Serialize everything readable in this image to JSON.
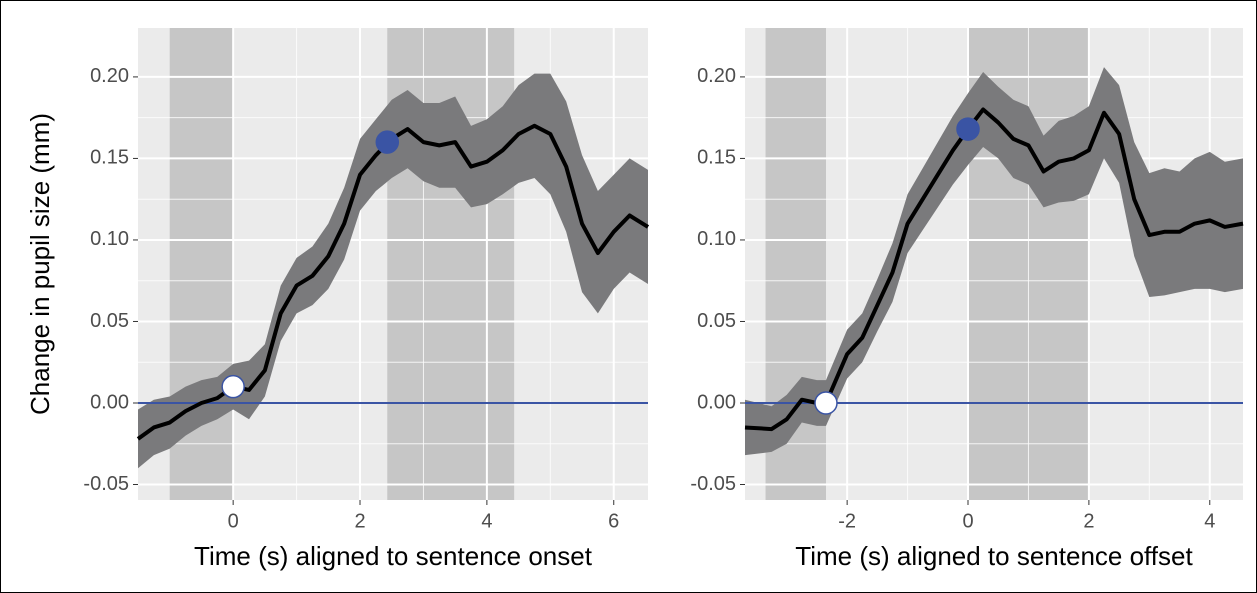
{
  "chart_data": [
    {
      "type": "line",
      "xlabel": "Time (s) aligned to sentence onset",
      "ylabel": "Change in pupil size (mm)",
      "x": [
        -1.5,
        -1.25,
        -1.0,
        -0.75,
        -0.5,
        -0.25,
        0,
        0.25,
        0.5,
        0.75,
        1.0,
        1.25,
        1.5,
        1.75,
        2.0,
        2.25,
        2.5,
        2.75,
        3.0,
        3.25,
        3.5,
        3.75,
        4.0,
        4.25,
        4.5,
        4.75,
        5.0,
        5.25,
        5.5,
        5.75,
        6.0,
        6.25,
        6.54
      ],
      "values": [
        -0.022,
        -0.015,
        -0.012,
        -0.005,
        0.0,
        0.003,
        0.01,
        0.008,
        0.02,
        0.055,
        0.072,
        0.078,
        0.09,
        0.11,
        0.14,
        0.152,
        0.162,
        0.168,
        0.16,
        0.158,
        0.16,
        0.145,
        0.148,
        0.155,
        0.165,
        0.17,
        0.165,
        0.145,
        0.11,
        0.092,
        0.105,
        0.115,
        0.108
      ],
      "ci_lower": [
        -0.04,
        -0.032,
        -0.028,
        -0.02,
        -0.014,
        -0.01,
        -0.004,
        -0.01,
        0.004,
        0.038,
        0.055,
        0.06,
        0.07,
        0.088,
        0.118,
        0.13,
        0.138,
        0.144,
        0.136,
        0.132,
        0.132,
        0.12,
        0.122,
        0.128,
        0.135,
        0.138,
        0.128,
        0.105,
        0.068,
        0.055,
        0.07,
        0.08,
        0.073
      ],
      "ci_upper": [
        -0.004,
        0.002,
        0.004,
        0.01,
        0.014,
        0.016,
        0.024,
        0.026,
        0.036,
        0.072,
        0.089,
        0.096,
        0.11,
        0.132,
        0.162,
        0.174,
        0.186,
        0.192,
        0.184,
        0.184,
        0.188,
        0.17,
        0.174,
        0.182,
        0.195,
        0.202,
        0.202,
        0.185,
        0.152,
        0.13,
        0.14,
        0.15,
        0.143
      ],
      "shaded": [
        [
          -1.0,
          0.0
        ],
        [
          2.43,
          4.43
        ]
      ],
      "markers": [
        {
          "x": 0.0,
          "y": 0.01,
          "color": "#ffffff"
        },
        {
          "x": 2.43,
          "y": 0.16,
          "color": "#3a54a4"
        }
      ],
      "hline": 0.0,
      "hline_color": "#3a54a4",
      "color": "#000000",
      "band_color": "#7a7a7c",
      "shade_color": "#c6c6c6",
      "xlim": [
        -1.5,
        6.54
      ],
      "ylim": [
        -0.0595,
        0.23
      ],
      "xticks": [
        0,
        2,
        4,
        6
      ],
      "yticks": [
        {
          "value": 0.2,
          "label": "0.20"
        },
        0.15,
        {
          "value": 0.1,
          "label": "0.10"
        },
        0.05,
        {
          "value": 0,
          "label": "0.00"
        },
        -0.05
      ],
      "grid": true
    },
    {
      "type": "line",
      "xlabel": "Time (s) aligned to sentence offset",
      "x": [
        -3.69,
        -3.25,
        -3.0,
        -2.75,
        -2.5,
        -2.35,
        -2.0,
        -1.75,
        -1.5,
        -1.25,
        -1.0,
        -0.75,
        -0.5,
        -0.25,
        0,
        0.25,
        0.5,
        0.75,
        1.0,
        1.25,
        1.5,
        1.75,
        2.0,
        2.25,
        2.5,
        2.75,
        3.0,
        3.25,
        3.5,
        3.75,
        4.0,
        4.25,
        4.55
      ],
      "values": [
        -0.015,
        -0.016,
        -0.01,
        0.002,
        0.0,
        0.0,
        0.03,
        0.04,
        0.06,
        0.08,
        0.11,
        0.125,
        0.14,
        0.155,
        0.168,
        0.18,
        0.172,
        0.162,
        0.158,
        0.142,
        0.148,
        0.15,
        0.155,
        0.178,
        0.165,
        0.125,
        0.103,
        0.105,
        0.105,
        0.11,
        0.112,
        0.108,
        0.11
      ],
      "ci_lower": [
        -0.032,
        -0.03,
        -0.025,
        -0.012,
        -0.014,
        -0.014,
        0.015,
        0.025,
        0.044,
        0.062,
        0.092,
        0.106,
        0.12,
        0.134,
        0.146,
        0.157,
        0.15,
        0.138,
        0.134,
        0.12,
        0.123,
        0.124,
        0.128,
        0.15,
        0.135,
        0.09,
        0.065,
        0.066,
        0.068,
        0.07,
        0.07,
        0.068,
        0.07
      ],
      "ci_upper": [
        0.002,
        -0.002,
        0.005,
        0.016,
        0.014,
        0.014,
        0.045,
        0.055,
        0.076,
        0.098,
        0.128,
        0.144,
        0.16,
        0.176,
        0.19,
        0.203,
        0.194,
        0.186,
        0.182,
        0.164,
        0.173,
        0.176,
        0.182,
        0.206,
        0.195,
        0.16,
        0.141,
        0.144,
        0.142,
        0.15,
        0.154,
        0.148,
        0.15
      ],
      "shaded": [
        [
          -3.35,
          -2.35
        ],
        [
          0.0,
          2.0
        ]
      ],
      "markers": [
        {
          "x": -2.35,
          "y": 0.0,
          "color": "#ffffff"
        },
        {
          "x": 0.0,
          "y": 0.168,
          "color": "#3a54a4"
        }
      ],
      "hline": 0.0,
      "hline_color": "#3a54a4",
      "color": "#000000",
      "band_color": "#7a7a7c",
      "shade_color": "#c6c6c6",
      "xlim": [
        -3.69,
        4.55
      ],
      "ylim": [
        -0.0595,
        0.23
      ],
      "xticks": [
        -2,
        0,
        2,
        4
      ],
      "yticks": [
        {
          "value": 0.2,
          "label": "0.20"
        },
        0.15,
        {
          "value": 0.1,
          "label": "0.10"
        },
        0.05,
        {
          "value": 0,
          "label": "0.00"
        },
        -0.05
      ],
      "grid": true
    }
  ]
}
